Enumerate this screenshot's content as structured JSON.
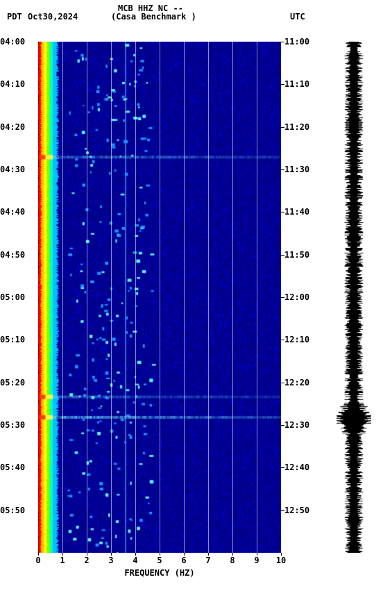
{
  "header": {
    "tz_left": "PDT",
    "date": "Oct30,2024",
    "station": "MCB HHZ NC --",
    "location": "(Casa Benchmark )",
    "tz_right": "UTC"
  },
  "x_axis": {
    "label": "FREQUENCY (HZ)",
    "ticks": [
      "0",
      "1",
      "2",
      "3",
      "4",
      "5",
      "6",
      "7",
      "8",
      "9",
      "10"
    ],
    "min": 0,
    "max": 10
  },
  "left_y_ticks": [
    "04:00",
    "04:10",
    "04:20",
    "04:30",
    "04:40",
    "04:50",
    "05:00",
    "05:10",
    "05:20",
    "05:30",
    "05:40",
    "05:50"
  ],
  "right_y_ticks": [
    "11:00",
    "11:10",
    "11:20",
    "11:30",
    "11:40",
    "11:50",
    "12:00",
    "12:10",
    "12:20",
    "12:30",
    "12:40",
    "12:50"
  ],
  "y_tick_positions_pct": [
    0,
    8.33,
    16.67,
    25,
    33.33,
    41.67,
    50,
    58.33,
    66.67,
    75,
    83.33,
    91.67
  ],
  "grid_x_positions_pct": [
    10,
    20,
    30,
    40,
    50,
    60,
    70,
    80,
    90
  ],
  "spectrogram_style": {
    "background_color": "#00008a",
    "low_freq_stripe": {
      "start_hz": 0.0,
      "end_hz": 0.6,
      "colors": [
        "#ff0000",
        "#ffbf00",
        "#ffff00",
        "#7fff00",
        "#00ffbf"
      ]
    },
    "horizontal_events": [
      {
        "time_pct": 22.6,
        "strength": 0.55
      },
      {
        "time_pct": 69.5,
        "strength": 0.45
      },
      {
        "time_pct": 73.5,
        "strength": 0.75
      }
    ],
    "vertical_line_hz": 3.6,
    "speckle_density": 260
  },
  "waveform_style": {
    "color": "#000000",
    "base_amplitude": 9,
    "burst_pct": 73.5,
    "burst_amplitude": 22
  },
  "footnote": ""
}
